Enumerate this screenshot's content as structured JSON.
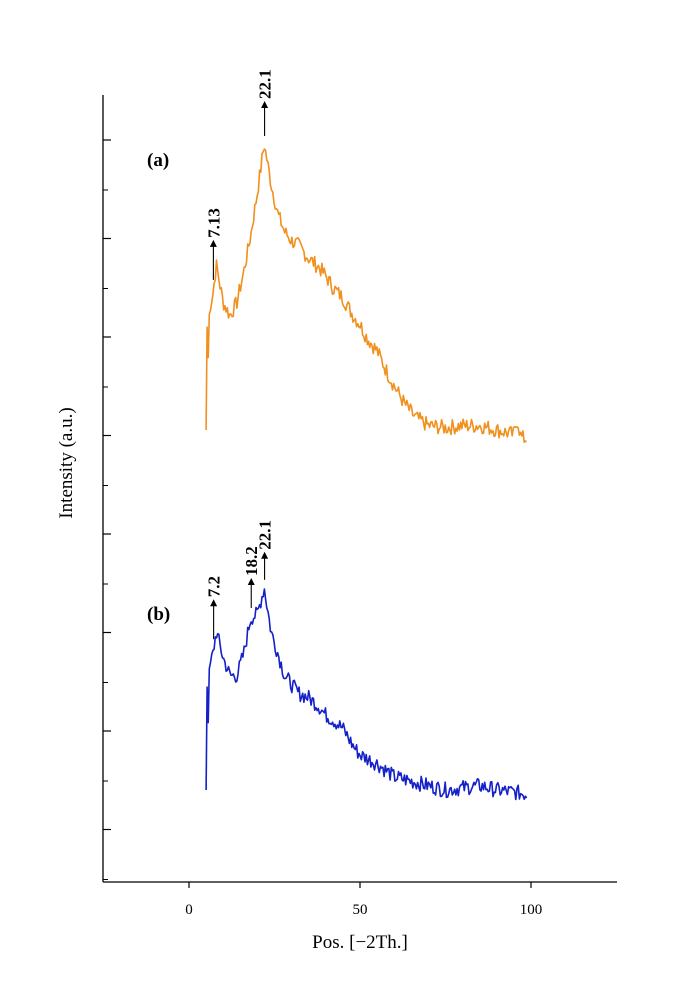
{
  "chart_data": {
    "type": "line",
    "title": "",
    "xlabel": "Pos. [−2Th.]",
    "ylabel": "Intensity (a.u.)",
    "xlim": [
      -25,
      125
    ],
    "xticks": [
      "0",
      "50",
      "100"
    ],
    "y_tick_labels_shown": false,
    "grid": false,
    "legend": "none",
    "series": [
      {
        "label": "(a)",
        "color": "#f0901e",
        "x": [
          5,
          6,
          7,
          8,
          10,
          12,
          14,
          16,
          18,
          20,
          22,
          24,
          26,
          28,
          30,
          32,
          35,
          38,
          40,
          42,
          45,
          48,
          50,
          52,
          55,
          58,
          60,
          63,
          66,
          70,
          75,
          80,
          85,
          90,
          95,
          96,
          97,
          98,
          99
        ],
        "y": [
          0.0,
          0.55,
          0.62,
          0.75,
          0.58,
          0.52,
          0.58,
          0.72,
          0.88,
          1.08,
          1.3,
          1.12,
          0.98,
          0.9,
          0.86,
          0.84,
          0.78,
          0.74,
          0.7,
          0.65,
          0.6,
          0.52,
          0.48,
          0.42,
          0.36,
          0.26,
          0.2,
          0.12,
          0.06,
          0.02,
          0.01,
          0.02,
          0.02,
          0.0,
          -0.02,
          0.05,
          -0.03,
          -0.04,
          -0.04
        ],
        "peaks": [
          {
            "x": 7.13,
            "label": "7.13"
          },
          {
            "x": 22.1,
            "label": "22.1"
          }
        ]
      },
      {
        "label": "(b)",
        "color": "#1420c8",
        "x": [
          5,
          6,
          7,
          8,
          10,
          12,
          14,
          16,
          18,
          20,
          22,
          24,
          26,
          28,
          30,
          32,
          35,
          38,
          40,
          42,
          45,
          48,
          50,
          55,
          60,
          65,
          70,
          75,
          80,
          85,
          90,
          95,
          99
        ],
        "y": [
          0.0,
          0.55,
          0.62,
          0.72,
          0.6,
          0.52,
          0.52,
          0.62,
          0.78,
          0.8,
          0.92,
          0.72,
          0.62,
          0.52,
          0.48,
          0.44,
          0.42,
          0.38,
          0.34,
          0.32,
          0.28,
          0.2,
          0.16,
          0.12,
          0.06,
          0.04,
          0.02,
          0.0,
          0.01,
          0.02,
          0.0,
          -0.01,
          -0.02
        ],
        "peaks": [
          {
            "x": 7.2,
            "label": "7.2"
          },
          {
            "x": 18.2,
            "label": "18.2"
          },
          {
            "x": 22.1,
            "label": "22.1"
          }
        ]
      }
    ]
  }
}
